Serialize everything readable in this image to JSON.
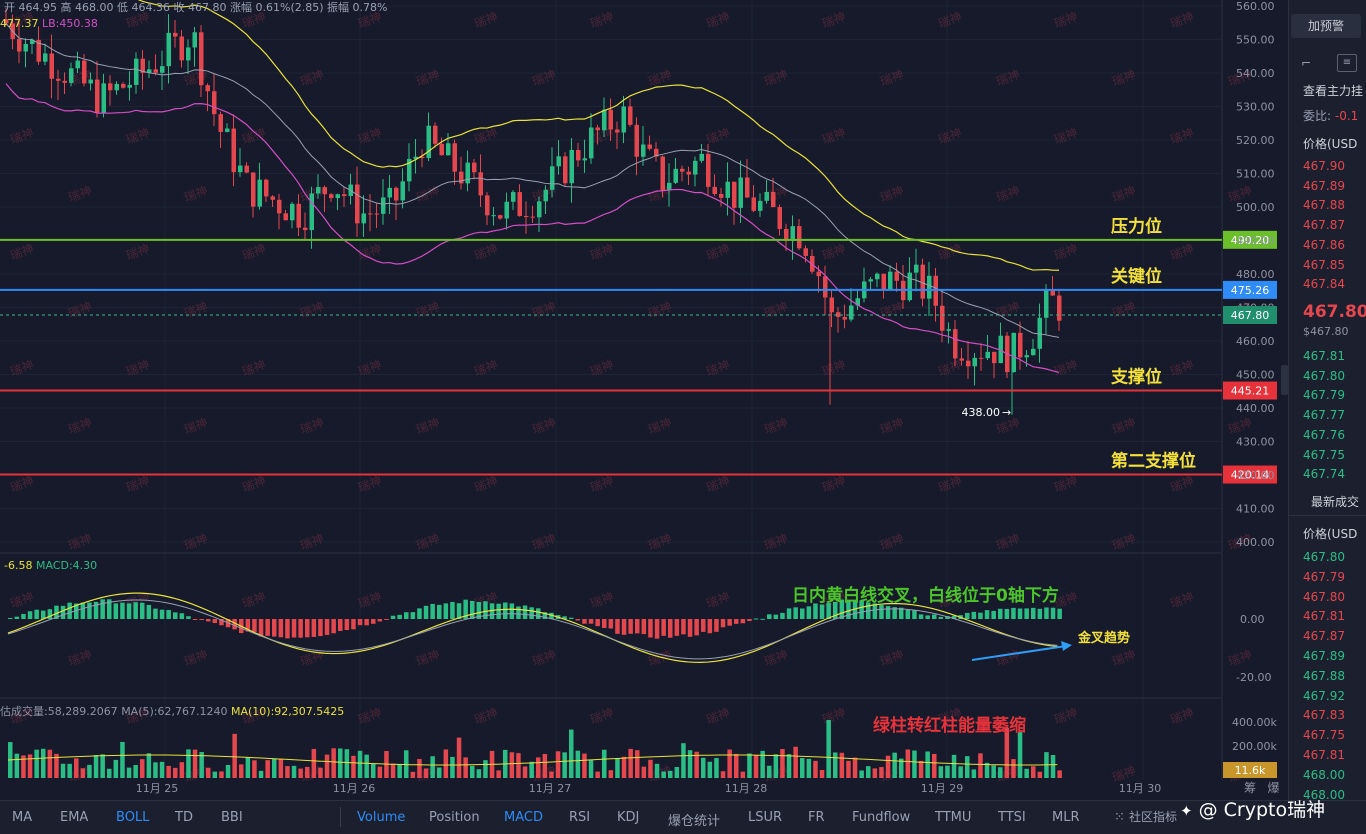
{
  "ohlc_header": {
    "open_label": "开",
    "open": "464.95",
    "high_label": "高",
    "high": "468.00",
    "low_label": "低",
    "low": "464.36",
    "close_label": "收",
    "close": "467.80",
    "chg_label": "涨幅",
    "chg": "0.61%(2.85)",
    "amp_label": "振幅",
    "amp": "0.78%"
  },
  "boll_header": {
    "ub": "477.37",
    "lb": "LB:450.38"
  },
  "price_axis": [
    "560.00",
    "550.00",
    "540.00",
    "530.00",
    "520.00",
    "510.00",
    "500.00",
    "490.00",
    "480.00",
    "470.00",
    "460.00",
    "450.00",
    "440.00",
    "430.00",
    "420.00",
    "410.00",
    "400.00"
  ],
  "levels": [
    {
      "name": "压力位",
      "price": "490.20",
      "color": "#6abf2a"
    },
    {
      "name": "关键位",
      "price": "475.26",
      "color": "#2f8cf6"
    },
    {
      "name": "支撑位",
      "price": "445.21",
      "color": "#e5323b"
    },
    {
      "name": "第二支撑位",
      "price": "420.14",
      "color": "#e5323b"
    }
  ],
  "current_price": "467.80",
  "low_marker": "438.00",
  "macd_header": {
    "dif": "-6.58",
    "macd": "MACD:4.30"
  },
  "macd_axis": [
    "0.00",
    "-20.00"
  ],
  "volume_header": {
    "est": "估成交量:58,289.2067",
    "ma5": "MA(5):62,767.1240",
    "ma10": "MA(10):92,307.5425"
  },
  "volume_axis": [
    "400.00k",
    "200.00k"
  ],
  "volume_current": "11.6k",
  "dates": [
    "11月 25",
    "11月 26",
    "11月 27",
    "11月 28",
    "11月 29",
    "11月 30"
  ],
  "annotations": {
    "macd_note": "日内黄白线交叉，白线位于0轴下方",
    "golden_cross": "金叉趋势",
    "volume_note": "绿柱转红柱能量萎缩",
    "watermark": "瑞神",
    "brand": "@ Crypto瑞神"
  },
  "right_small": [
    "筹",
    "爆"
  ],
  "bottom_tabs_left": [
    "MA",
    "EMA",
    "BOLL",
    "TD",
    "BBI"
  ],
  "bottom_tabs_right": [
    "Volume",
    "Position",
    "MACD",
    "RSI",
    "KDJ",
    "爆仓统计",
    "LSUR",
    "FR",
    "Fundflow",
    "TTMU",
    "TTSI",
    "MLR"
  ],
  "community_indicators": "社区指标",
  "side_panel": {
    "alert_button": "加预警",
    "main_force": "查看主力挂",
    "commission_label": "委比:",
    "commission_value": "-0.1",
    "price_header": "价格(USD",
    "asks": [
      "467.90",
      "467.89",
      "467.88",
      "467.87",
      "467.86",
      "467.85",
      "467.84"
    ],
    "mid_price": "467.80",
    "mid_usd": "$467.80",
    "bids": [
      "467.81",
      "467.80",
      "467.79",
      "467.77",
      "467.76",
      "467.75",
      "467.74"
    ],
    "latest_trades": "最新成交",
    "trades_header": "价格(USD",
    "trades": [
      {
        "p": "467.80",
        "c": "#2bbd86"
      },
      {
        "p": "467.79",
        "c": "#e5474e"
      },
      {
        "p": "467.80",
        "c": "#e5474e"
      },
      {
        "p": "467.81",
        "c": "#e5474e"
      },
      {
        "p": "467.87",
        "c": "#e5474e"
      },
      {
        "p": "467.89",
        "c": "#2bbd86"
      },
      {
        "p": "467.88",
        "c": "#2bbd86"
      },
      {
        "p": "467.92",
        "c": "#2bbd86"
      },
      {
        "p": "467.83",
        "c": "#e5474e"
      },
      {
        "p": "467.75",
        "c": "#e5474e"
      },
      {
        "p": "467.81",
        "c": "#e5474e"
      },
      {
        "p": "468.00",
        "c": "#2bbd86"
      },
      {
        "p": "468.00",
        "c": "#2bbd86"
      }
    ]
  },
  "colors": {
    "up": "#2bbd86",
    "down": "#e5474e",
    "boll_up": "#e8e23a",
    "boll_mid": "#9aa0b2",
    "boll_low": "#d24fc4",
    "accent": "#2f8cf6"
  }
}
